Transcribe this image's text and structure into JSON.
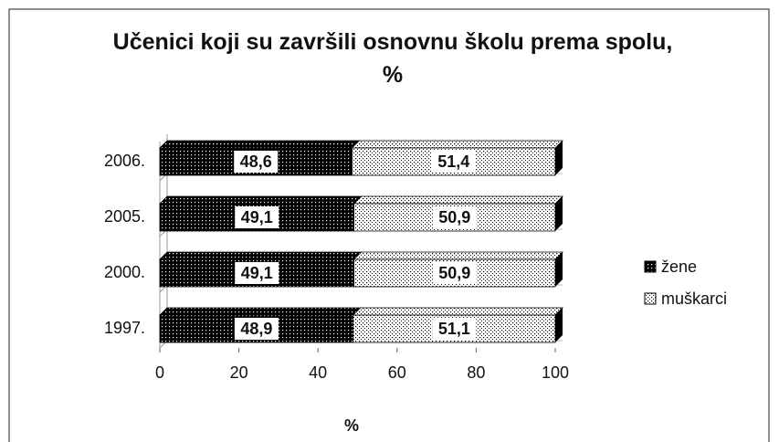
{
  "chart_data": {
    "type": "stacked_barh",
    "title": "Učenici koji su završili osnovnu školu prema spolu, %",
    "categories": [
      "2006.",
      "2005.",
      "2000.",
      "1997."
    ],
    "series": [
      {
        "name": "žene",
        "color": "#000000",
        "values": [
          48.6,
          49.1,
          49.1,
          48.9
        ],
        "value_labels": [
          "48,6",
          "49,1",
          "49,1",
          "48,9"
        ]
      },
      {
        "name": "muškarci",
        "color": "#ffffff",
        "values": [
          51.4,
          50.9,
          50.9,
          51.1
        ],
        "value_labels": [
          "51,4",
          "50,9",
          "50,9",
          "51,1"
        ]
      }
    ],
    "xlim": [
      0,
      100
    ],
    "xticks": [
      0,
      20,
      40,
      60,
      80,
      100
    ],
    "xlabel": "%",
    "legend": "right"
  }
}
